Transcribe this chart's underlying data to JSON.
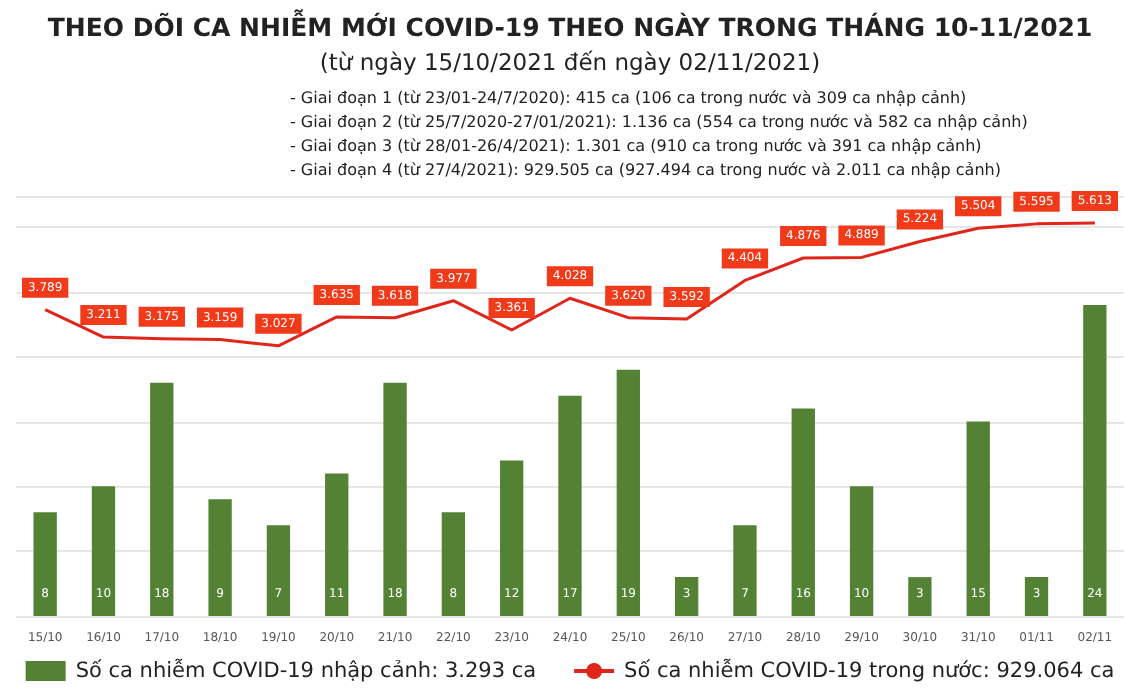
{
  "chart_data": {
    "type": "bar",
    "title": "THEO DÕI CA NHIỄM MỚI COVID-19 THEO NGÀY TRONG THÁNG 10-11/2021",
    "subtitle": "(từ ngày 15/10/2021 đến ngày 02/11/2021)",
    "annotations": [
      "- Giai đoạn 1 (từ 23/01-24/7/2020): 415 ca (106 ca trong nước và 309 ca nhập cảnh)",
      "- Giai đoạn 2 (từ 25/7/2020-27/01/2021): 1.136 ca (554 ca trong nước và 582 ca nhập cảnh)",
      "- Giai đoạn 3 (từ 28/01-26/4/2021): 1.301 ca (910 ca trong nước và 391 ca nhập cảnh)",
      "- Giai đoạn 4 (từ 27/4/2021): 929.505 ca (927.494 ca trong nước và 2.011 ca nhập cảnh)"
    ],
    "categories": [
      "15/10",
      "16/10",
      "17/10",
      "18/10",
      "19/10",
      "20/10",
      "21/10",
      "22/10",
      "23/10",
      "24/10",
      "25/10",
      "26/10",
      "27/10",
      "28/10",
      "29/10",
      "30/10",
      "31/10",
      "01/11",
      "02/11"
    ],
    "series": [
      {
        "name": "Số ca nhiễm COVID-19 nhập cảnh: 3.293 ca",
        "color": "#548235",
        "values": [
          8,
          10,
          18,
          9,
          7,
          11,
          18,
          8,
          12,
          17,
          19,
          3,
          7,
          16,
          10,
          3,
          15,
          3,
          24
        ]
      },
      {
        "name": "Số ca nhiễm COVID-19 trong nước: 929.064 ca",
        "type": "line",
        "axis": "y2",
        "color": "#e0261b",
        "values": [
          3789,
          3211,
          3175,
          3159,
          3027,
          3635,
          3618,
          3977,
          3361,
          4028,
          3620,
          3592,
          4404,
          4876,
          4889,
          5224,
          5504,
          5595,
          5613
        ],
        "value_labels": [
          "3.789",
          "3.211",
          "3.175",
          "3.159",
          "3.027",
          "3.635",
          "3.618",
          "3.977",
          "3.361",
          "4.028",
          "3.620",
          "3.592",
          "4.404",
          "4.876",
          "4.889",
          "5.224",
          "5.504",
          "5.595",
          "5.613"
        ]
      }
    ],
    "data_labels": true,
    "grid": "y",
    "legend": "bottom",
    "marker": "none"
  }
}
